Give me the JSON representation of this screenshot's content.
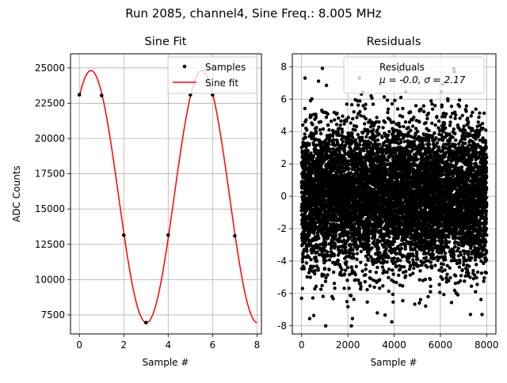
{
  "figure": {
    "suptitle": "Run 2085, channel4, Sine Freq.: 8.005 MHz"
  },
  "chart_data": [
    {
      "type": "line",
      "title": "Sine Fit",
      "xlabel": "Sample #",
      "ylabel": "ADC Counts",
      "xlim": [
        -0.4,
        8.2
      ],
      "ylim": [
        6150,
        26000
      ],
      "grid": true,
      "legend": "top-right",
      "xticks": [
        0,
        2,
        4,
        6,
        8
      ],
      "yticks": [
        7500,
        10000,
        12500,
        15000,
        17500,
        20000,
        22500,
        25000
      ],
      "series": [
        {
          "name": "Samples",
          "style": "markers",
          "color": "#000000",
          "x": [
            0,
            1,
            2,
            3,
            4,
            5,
            6,
            7
          ],
          "y": [
            23100,
            23050,
            13150,
            6950,
            13150,
            23100,
            23100,
            13100
          ]
        },
        {
          "name": "Sine fit",
          "style": "line",
          "color": "#ff0000",
          "model": {
            "offset": 15880,
            "amplitude": 8930,
            "period": 4.998,
            "peak_at": 0.52
          },
          "x_range": [
            0,
            8
          ]
        }
      ]
    },
    {
      "type": "scatter",
      "title": "Residuals",
      "xlabel": "Sample #",
      "ylabel": "",
      "xlim": [
        -400,
        8400
      ],
      "ylim": [
        -8.5,
        8.8
      ],
      "grid": true,
      "legend": "top-right",
      "legend_line1": "Residuals",
      "legend_line2": "μ = -0.0, σ = 2.17",
      "xticks": [
        0,
        2000,
        4000,
        6000,
        8000
      ],
      "yticks": [
        -8,
        -6,
        -4,
        -2,
        0,
        2,
        4,
        6,
        8
      ],
      "series": [
        {
          "name": "Residuals",
          "color": "#000000",
          "n_points": 8000,
          "mean": 0.0,
          "sigma": 2.17,
          "x_range": [
            0,
            8000
          ],
          "notable_points": [
            [
              900,
              7.9
            ],
            [
              2500,
              7.3
            ],
            [
              6600,
              7.7
            ],
            [
              150,
              7.3
            ],
            [
              3900,
              -7.75
            ],
            [
              2200,
              -7.55
            ],
            [
              7300,
              -7.3
            ],
            [
              7800,
              -7.3
            ],
            [
              0,
              -6.3
            ],
            [
              4500,
              6.45
            ]
          ]
        }
      ]
    }
  ]
}
